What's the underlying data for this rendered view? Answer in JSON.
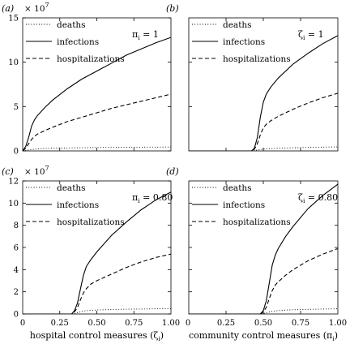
{
  "chart_data": [
    {
      "type": "line",
      "panel_label": "(a)",
      "scale_label": "× 10^7",
      "annotation": "π_i = 1",
      "xlim": [
        0,
        1
      ],
      "ylim": [
        0,
        15
      ],
      "xticks": [],
      "yticks": [
        0,
        5,
        10,
        15
      ],
      "xlabel": "",
      "x": [
        0,
        0.02,
        0.04,
        0.06,
        0.08,
        0.1,
        0.15,
        0.2,
        0.3,
        0.4,
        0.5,
        0.6,
        0.7,
        0.8,
        0.9,
        1.0
      ],
      "series": [
        {
          "name": "deaths",
          "style": "dotted",
          "values": [
            0,
            0.05,
            0.1,
            0.15,
            0.2,
            0.23,
            0.27,
            0.3,
            0.33,
            0.36,
            0.38,
            0.4,
            0.41,
            0.42,
            0.43,
            0.44
          ]
        },
        {
          "name": "infections",
          "style": "solid",
          "values": [
            0,
            0.5,
            1.5,
            2.8,
            3.5,
            4.0,
            4.9,
            5.7,
            7.0,
            8.1,
            9.0,
            9.9,
            10.8,
            11.5,
            12.2,
            12.8
          ]
        },
        {
          "name": "hospitalizations",
          "style": "dashed",
          "values": [
            0,
            0.3,
            0.8,
            1.3,
            1.65,
            1.9,
            2.3,
            2.65,
            3.3,
            3.8,
            4.3,
            4.8,
            5.2,
            5.6,
            6.0,
            6.4
          ]
        }
      ]
    },
    {
      "type": "line",
      "panel_label": "(b)",
      "scale_label": "",
      "annotation": "ζ_i = 1",
      "xlim": [
        0,
        1
      ],
      "ylim": [
        0,
        15
      ],
      "xticks": [],
      "yticks": [],
      "xlabel": "",
      "x": [
        0,
        0.42,
        0.44,
        0.46,
        0.48,
        0.5,
        0.52,
        0.55,
        0.6,
        0.7,
        0.8,
        0.9,
        1.0
      ],
      "series": [
        {
          "name": "deaths",
          "style": "dotted",
          "values": [
            0,
            0,
            0.05,
            0.1,
            0.15,
            0.2,
            0.23,
            0.26,
            0.3,
            0.35,
            0.4,
            0.43,
            0.46
          ]
        },
        {
          "name": "infections",
          "style": "solid",
          "values": [
            0,
            0,
            0.3,
            1.5,
            3.8,
            5.5,
            6.4,
            7.2,
            8.2,
            9.8,
            11.0,
            12.1,
            13.0
          ]
        },
        {
          "name": "hospitalizations",
          "style": "dashed",
          "values": [
            0,
            0,
            0.2,
            0.8,
            1.8,
            2.6,
            3.0,
            3.4,
            3.9,
            4.7,
            5.4,
            6.0,
            6.5
          ]
        }
      ]
    },
    {
      "type": "line",
      "panel_label": "(c)",
      "scale_label": "× 10^7",
      "annotation": "π_i = 0.80",
      "xlim": [
        0,
        1
      ],
      "ylim": [
        0,
        12
      ],
      "xticks": [
        "0.25",
        "0.50",
        "0.75",
        "1.00"
      ],
      "yticks": [
        0,
        2,
        4,
        6,
        8,
        10,
        12
      ],
      "xlabel": "hospital control measures (ζ_i)",
      "x": [
        0,
        0.33,
        0.35,
        0.37,
        0.39,
        0.41,
        0.43,
        0.46,
        0.5,
        0.6,
        0.7,
        0.8,
        0.9,
        1.0
      ],
      "series": [
        {
          "name": "deaths",
          "style": "dotted",
          "values": [
            0,
            0,
            0.05,
            0.1,
            0.2,
            0.27,
            0.3,
            0.33,
            0.36,
            0.4,
            0.43,
            0.45,
            0.47,
            0.48
          ]
        },
        {
          "name": "infections",
          "style": "solid",
          "values": [
            0,
            0,
            0.3,
            1.0,
            2.3,
            3.5,
            4.3,
            4.9,
            5.6,
            7.1,
            8.3,
            9.4,
            10.3,
            11.0
          ]
        },
        {
          "name": "hospitalizations",
          "style": "dashed",
          "values": [
            0,
            0,
            0.2,
            0.6,
            1.3,
            1.9,
            2.3,
            2.7,
            3.0,
            3.6,
            4.2,
            4.7,
            5.1,
            5.4
          ]
        }
      ]
    },
    {
      "type": "line",
      "panel_label": "(d)",
      "scale_label": "",
      "annotation": "ζ_i = 0.80",
      "xlim": [
        0,
        1
      ],
      "ylim": [
        0,
        12
      ],
      "xticks": [
        "0.25",
        "0.50",
        "0.75",
        "1.00"
      ],
      "yticks": [],
      "xlabel": "community control measures (π_i)",
      "x": [
        0,
        0.48,
        0.5,
        0.52,
        0.54,
        0.56,
        0.58,
        0.6,
        0.65,
        0.7,
        0.8,
        0.9,
        1.0
      ],
      "series": [
        {
          "name": "deaths",
          "style": "dotted",
          "values": [
            0,
            0,
            0.05,
            0.1,
            0.18,
            0.24,
            0.28,
            0.31,
            0.35,
            0.38,
            0.42,
            0.45,
            0.47
          ]
        },
        {
          "name": "infections",
          "style": "solid",
          "values": [
            0,
            0,
            0.3,
            1.2,
            2.8,
            4.4,
            5.3,
            5.9,
            7.0,
            7.9,
            9.5,
            10.7,
            11.7
          ]
        },
        {
          "name": "hospitalizations",
          "style": "dashed",
          "values": [
            0,
            0,
            0.2,
            0.6,
            1.4,
            2.1,
            2.6,
            2.9,
            3.5,
            4.0,
            4.8,
            5.4,
            5.9
          ]
        }
      ]
    }
  ]
}
